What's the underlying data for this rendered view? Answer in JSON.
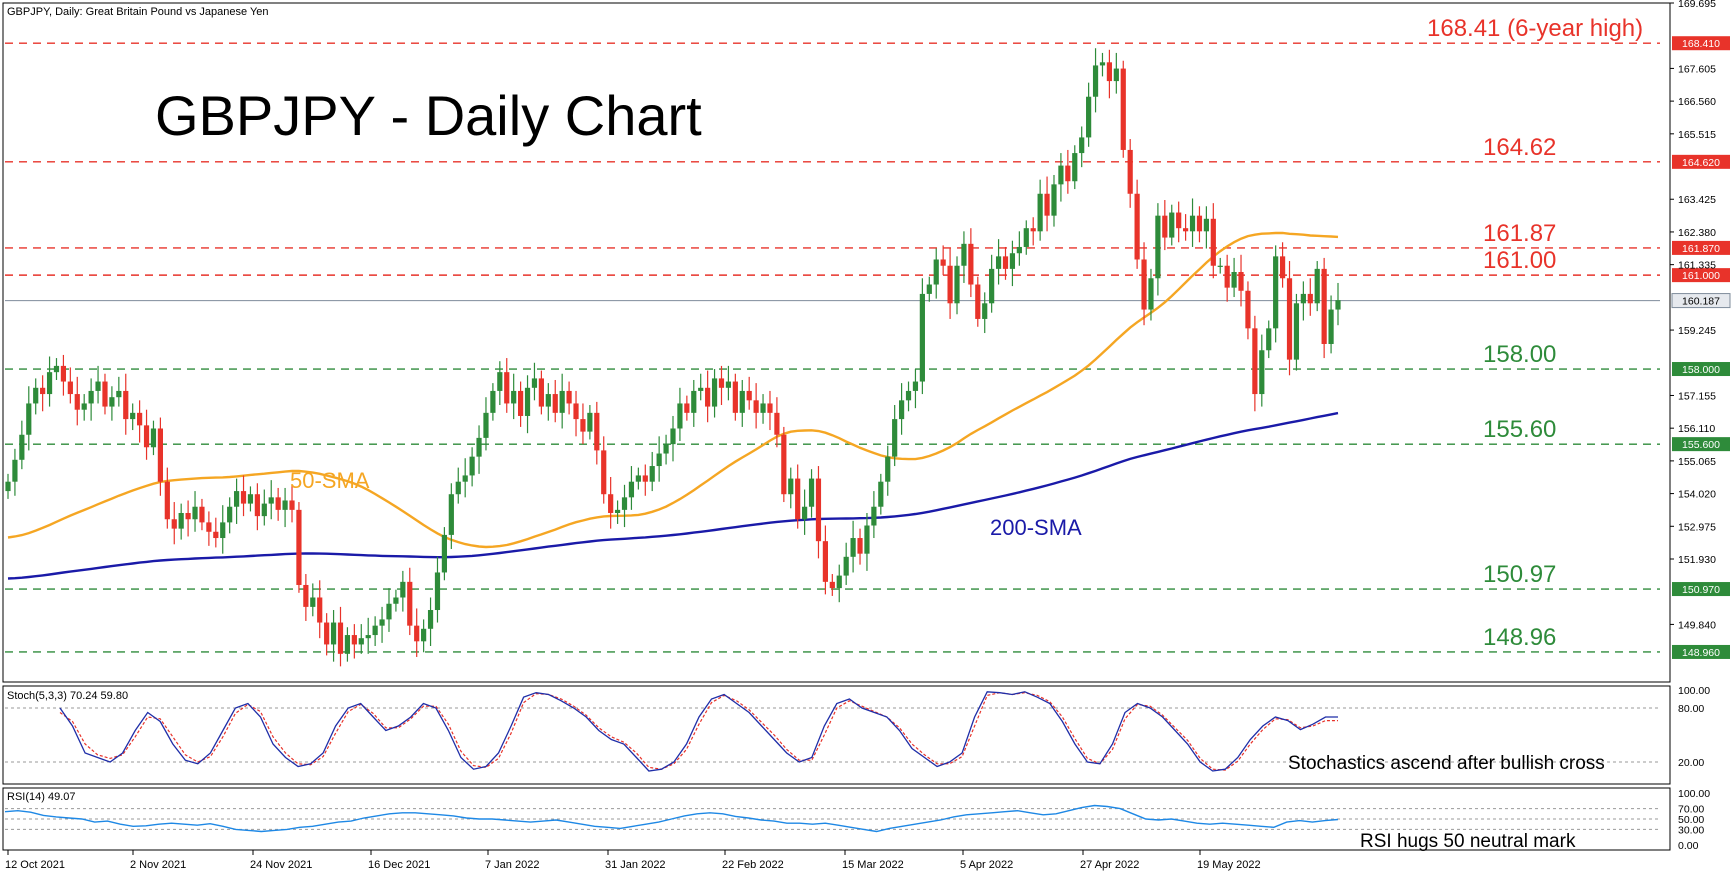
{
  "header": {
    "symbol_line": "GBPJPY, Daily:  Great Britain Pound vs Japanese Yen",
    "chart_title": "GBPJPY - Daily Chart"
  },
  "colors": {
    "bull": "#2e8b3a",
    "bear": "#e8332a",
    "sma50": "#f5a623",
    "sma200": "#1a1aa8",
    "support": "#2e8b3a",
    "resistance": "#e8332a",
    "current": "#7f8c9b",
    "stoch_main": "#1f2ea8",
    "stoch_signal": "#e8332a",
    "rsi": "#1e88e5"
  },
  "chart_data": {
    "type": "candlestick",
    "title": "GBPJPY - Daily Chart",
    "symbol": "GBPJPY, Daily",
    "ylim": [
      148.0,
      169.695
    ],
    "y_ticks": [
      "169.695",
      "168.410",
      "167.605",
      "166.560",
      "165.515",
      "164.620",
      "163.425",
      "162.380",
      "161.335",
      "161.000",
      "160.187",
      "159.245",
      "158.000",
      "157.155",
      "156.110",
      "155.600",
      "155.065",
      "154.020",
      "152.975",
      "151.930",
      "150.970",
      "149.840",
      "148.960"
    ],
    "x_ticks": [
      "12 Oct 2021",
      "2 Nov 2021",
      "24 Nov 2021",
      "16 Dec 2021",
      "7 Jan 2022",
      "31 Jan 2022",
      "22 Feb 2022",
      "15 Mar 2022",
      "5 Apr 2022",
      "27 Apr 2022",
      "19 May 2022"
    ],
    "closes": [
      154.4,
      155.1,
      155.9,
      156.9,
      157.4,
      157.2,
      157.9,
      158.1,
      157.6,
      157.2,
      156.7,
      156.9,
      157.3,
      157.6,
      156.8,
      157.1,
      157.3,
      156.4,
      156.6,
      156.2,
      155.5,
      156.1,
      154.4,
      153.2,
      152.9,
      153.4,
      153.2,
      153.6,
      153.1,
      152.8,
      152.6,
      153.1,
      153.6,
      154.1,
      153.7,
      154.0,
      153.3,
      153.7,
      153.9,
      153.5,
      153.8,
      153.5,
      151.1,
      150.4,
      150.7,
      149.9,
      149.2,
      149.9,
      148.9,
      149.5,
      149.2,
      149.4,
      149.5,
      149.8,
      150.0,
      150.5,
      150.7,
      151.2,
      149.8,
      149.3,
      149.7,
      150.3,
      151.5,
      152.7,
      154.0,
      154.4,
      154.6,
      155.2,
      155.8,
      156.6,
      157.3,
      157.9,
      156.9,
      157.3,
      156.5,
      157.4,
      157.7,
      156.8,
      157.2,
      156.6,
      157.3,
      156.9,
      156.4,
      156.0,
      156.6,
      155.4,
      154.0,
      153.4,
      153.5,
      153.9,
      154.4,
      154.6,
      154.4,
      154.9,
      155.3,
      155.6,
      156.1,
      156.9,
      156.6,
      157.3,
      157.4,
      156.8,
      157.7,
      157.4,
      157.6,
      156.6,
      157.3,
      157.0,
      156.6,
      156.9,
      156.6,
      155.9,
      154.0,
      154.5,
      153.2,
      153.6,
      154.5,
      152.5,
      151.2,
      151.0,
      151.4,
      152.0,
      152.6,
      152.1,
      153.0,
      153.6,
      154.4,
      155.2,
      156.4,
      157.0,
      157.3,
      157.6,
      160.4,
      160.7,
      161.5,
      161.3,
      160.1,
      161.3,
      162.0,
      160.7,
      159.6,
      160.1,
      161.2,
      161.6,
      161.2,
      161.7,
      161.9,
      162.5,
      162.4,
      163.6,
      162.9,
      163.9,
      164.5,
      164.0,
      164.9,
      165.4,
      166.7,
      167.7,
      167.8,
      167.2,
      167.6,
      165.0,
      163.6,
      161.5,
      159.9,
      160.9,
      162.9,
      162.2,
      163.0,
      162.5,
      162.4,
      162.9,
      162.4,
      162.8,
      161.3,
      161.3,
      160.6,
      161.1,
      160.5,
      159.3,
      157.2,
      158.6,
      159.3,
      161.6,
      160.9,
      158.3,
      160.1,
      160.4,
      160.1,
      161.2,
      158.8,
      159.9,
      160.2
    ]
  },
  "levels": [
    {
      "label": "168.41 (6-year high)",
      "box": "168.410",
      "value": 168.41,
      "kind": "resistance"
    },
    {
      "label": "164.62",
      "box": "164.620",
      "value": 164.62,
      "kind": "resistance"
    },
    {
      "label": "161.87",
      "box": "161.870",
      "value": 161.87,
      "kind": "resistance"
    },
    {
      "label": "161.00",
      "box": "161.000",
      "value": 161.0,
      "kind": "resistance"
    },
    {
      "label": "158.00",
      "box": "158.000",
      "value": 158.0,
      "kind": "support"
    },
    {
      "label": "155.60",
      "box": "155.600",
      "value": 155.6,
      "kind": "support"
    },
    {
      "label": "150.97",
      "box": "150.970",
      "value": 150.97,
      "kind": "support"
    },
    {
      "label": "148.96",
      "box": "148.960",
      "value": 148.96,
      "kind": "support"
    }
  ],
  "current_price": {
    "value": 160.187,
    "box": "160.187"
  },
  "annotations": {
    "sma50": "50-SMA",
    "sma200": "200-SMA",
    "stoch_note": "Stochastics ascend after bullish cross",
    "rsi_note": "RSI hugs 50 neutral mark"
  },
  "stochastic": {
    "label": "Stoch(5,3,3) 70.24 59.80",
    "ticks": [
      "100.00",
      "80.00",
      "20.00"
    ],
    "points": [
      80,
      60,
      30,
      25,
      20,
      30,
      55,
      75,
      65,
      40,
      22,
      18,
      30,
      55,
      80,
      85,
      70,
      40,
      25,
      15,
      18,
      30,
      60,
      80,
      85,
      70,
      55,
      60,
      70,
      85,
      80,
      55,
      25,
      12,
      15,
      30,
      60,
      92,
      97,
      95,
      88,
      80,
      70,
      55,
      45,
      40,
      25,
      10,
      12,
      20,
      40,
      70,
      90,
      95,
      85,
      75,
      60,
      45,
      30,
      20,
      25,
      60,
      85,
      90,
      80,
      75,
      70,
      55,
      35,
      25,
      15,
      20,
      30,
      70,
      98,
      97,
      95,
      98,
      92,
      85,
      65,
      40,
      20,
      18,
      40,
      75,
      85,
      80,
      70,
      55,
      40,
      20,
      10,
      12,
      25,
      45,
      60,
      70,
      66,
      56,
      62,
      70,
      70
    ],
    "signal": [
      75,
      65,
      40,
      28,
      24,
      28,
      48,
      70,
      68,
      48,
      28,
      20,
      26,
      48,
      74,
      84,
      76,
      48,
      30,
      18,
      17,
      26,
      52,
      76,
      84,
      74,
      58,
      58,
      68,
      82,
      82,
      62,
      32,
      16,
      14,
      24,
      52,
      86,
      96,
      95,
      90,
      82,
      72,
      58,
      48,
      42,
      30,
      14,
      12,
      18,
      34,
      62,
      86,
      94,
      88,
      78,
      64,
      50,
      34,
      22,
      22,
      50,
      80,
      88,
      82,
      76,
      70,
      58,
      40,
      28,
      18,
      18,
      26,
      60,
      94,
      97,
      95,
      97,
      94,
      87,
      70,
      46,
      24,
      18,
      34,
      68,
      84,
      82,
      72,
      58,
      44,
      24,
      12,
      11,
      21,
      40,
      56,
      68,
      67,
      58,
      60,
      66,
      66
    ]
  },
  "rsi": {
    "label": "RSI(14) 49.07",
    "ticks": [
      "100.00",
      "70.00",
      "50.00",
      "30.00",
      "0.00"
    ],
    "points": [
      64,
      66,
      63,
      57,
      54,
      52,
      50,
      44,
      46,
      40,
      36,
      37,
      40,
      42,
      40,
      38,
      41,
      36,
      30,
      28,
      26,
      28,
      30,
      34,
      36,
      40,
      44,
      46,
      52,
      56,
      60,
      62,
      62,
      60,
      58,
      56,
      52,
      50,
      50,
      48,
      46,
      44,
      46,
      48,
      44,
      40,
      36,
      34,
      32,
      36,
      40,
      44,
      50,
      56,
      60,
      62,
      60,
      55,
      52,
      48,
      46,
      42,
      42,
      40,
      42,
      38,
      34,
      30,
      26,
      32,
      36,
      40,
      44,
      48,
      54,
      58,
      60,
      62,
      64,
      66,
      62,
      58,
      60,
      66,
      72,
      76,
      74,
      70,
      60,
      50,
      48,
      50,
      46,
      42,
      40,
      42,
      40,
      38,
      36,
      34,
      44,
      47,
      44,
      47,
      49
    ]
  }
}
